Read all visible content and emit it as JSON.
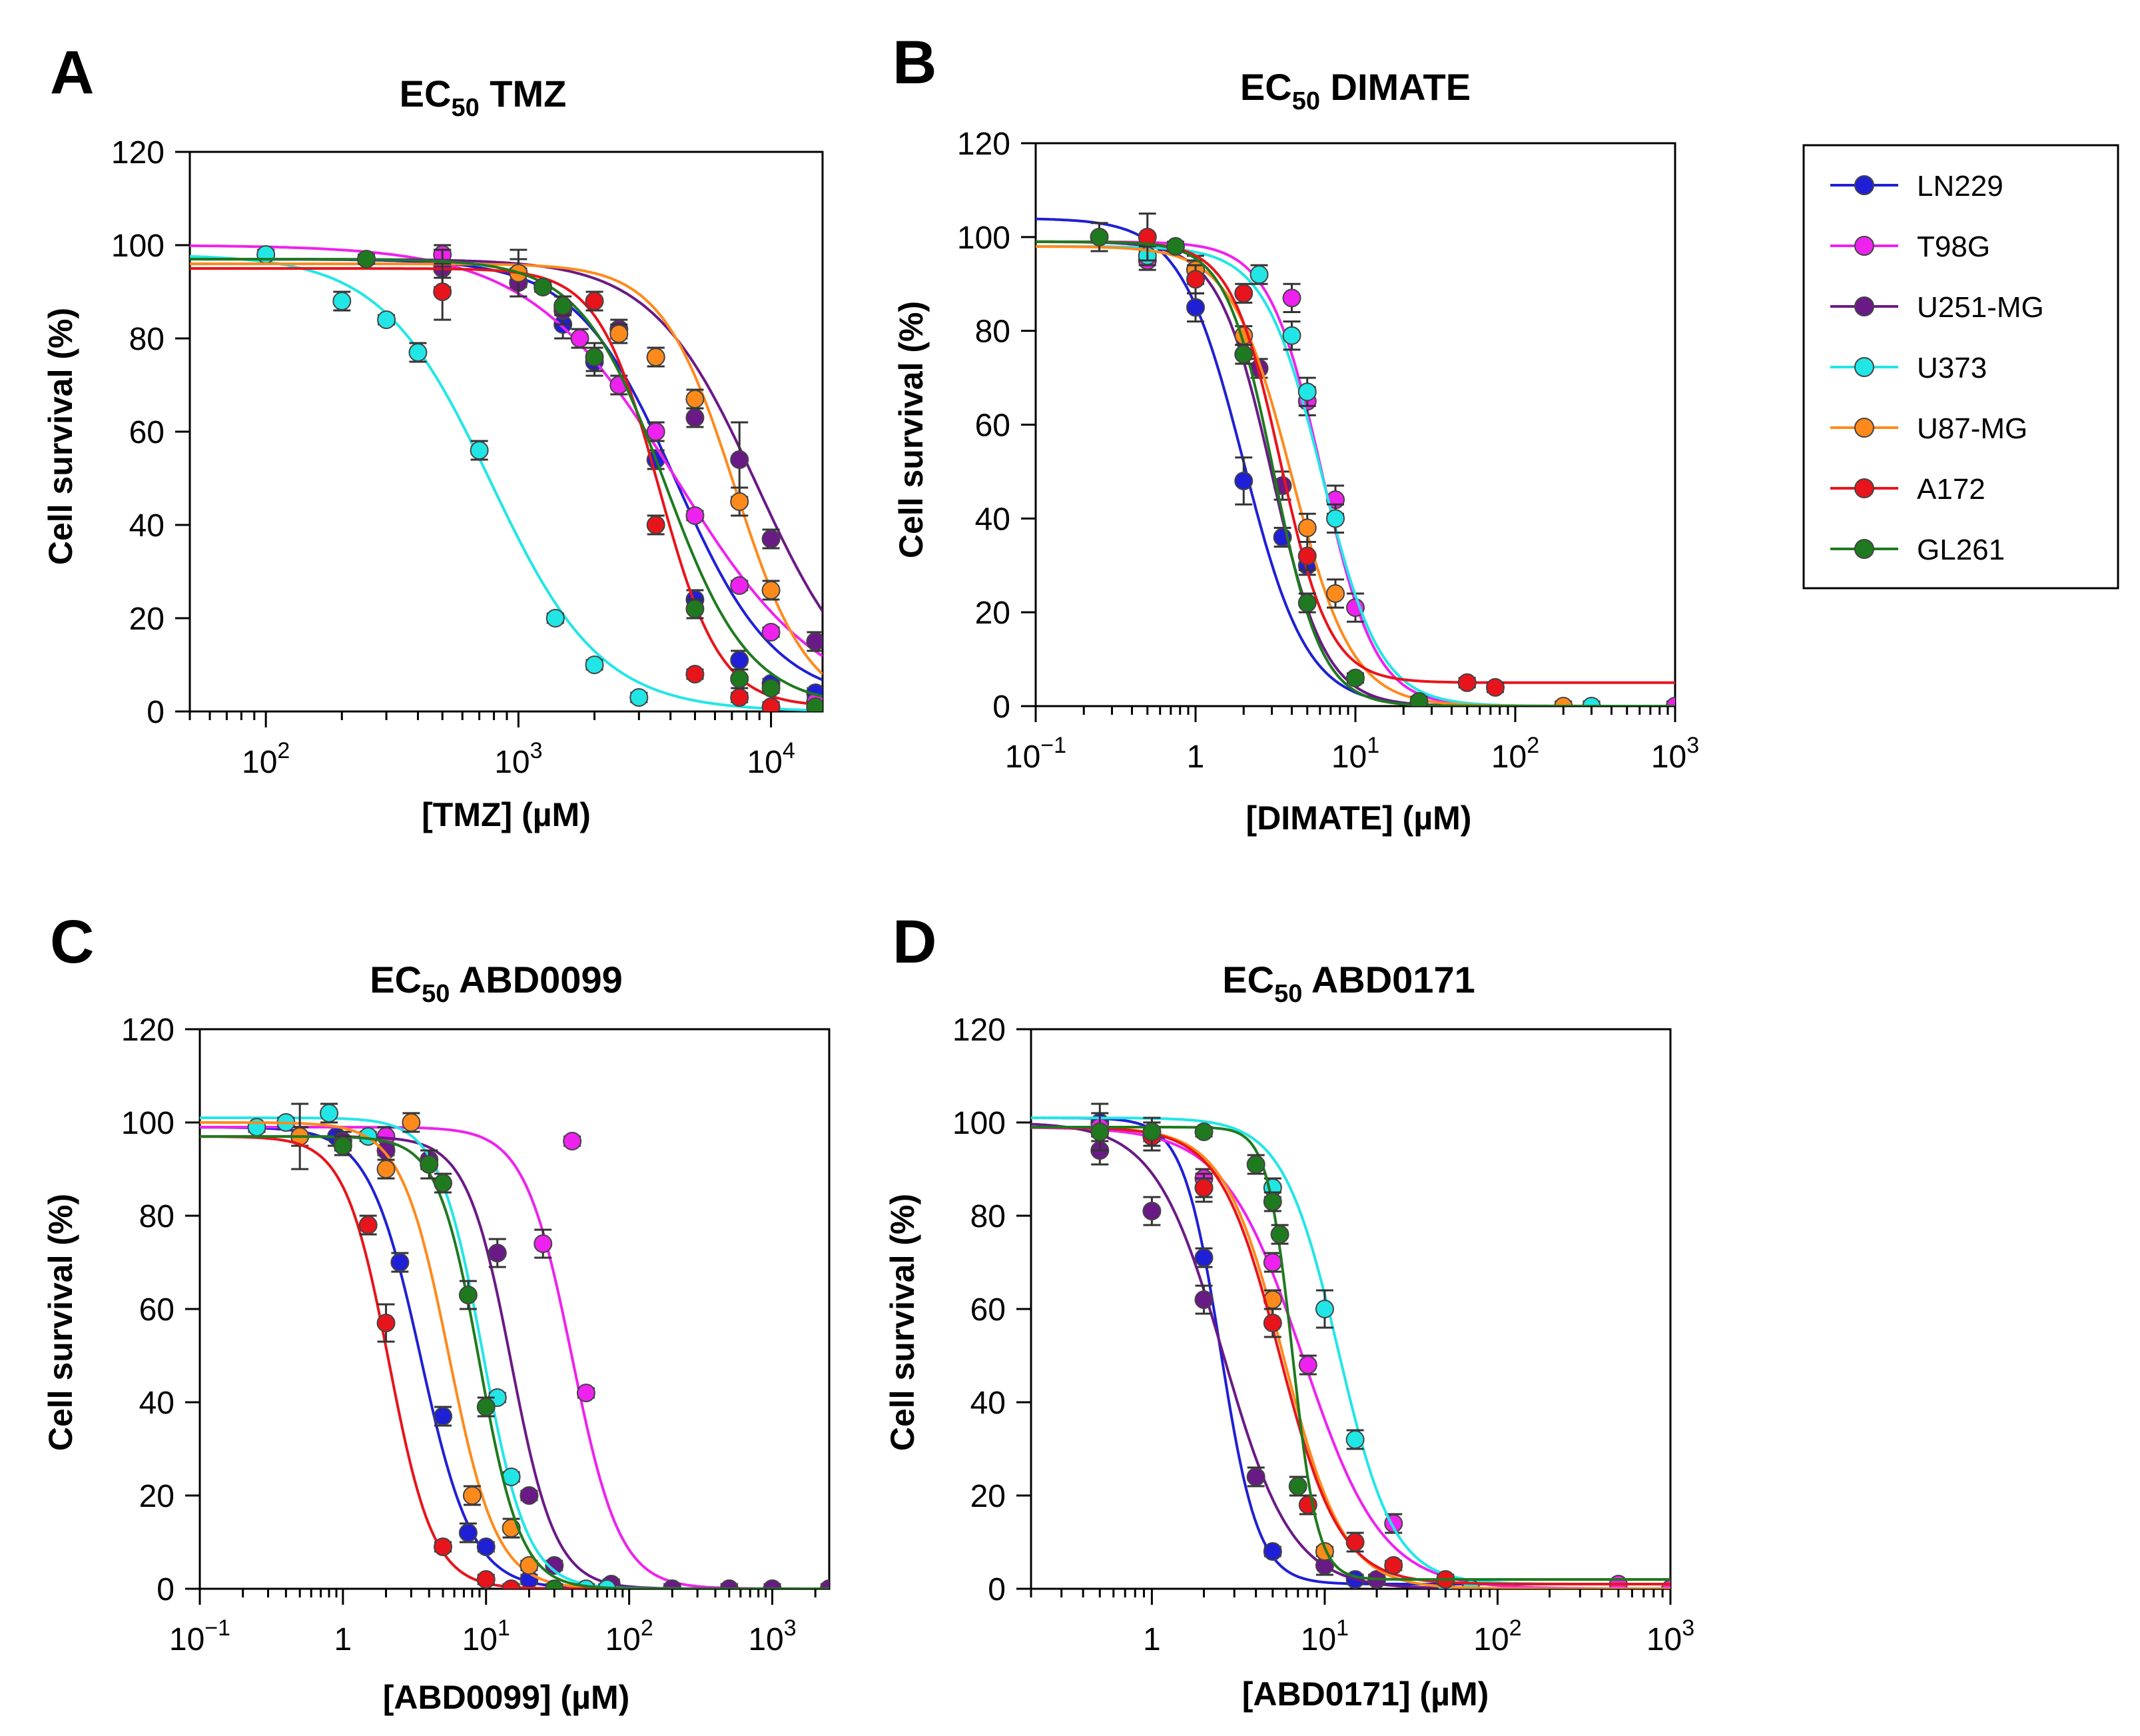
{
  "colors": {
    "LN229": "#1f1fd6",
    "T98G": "#ee22ee",
    "U251-MG": "#6a1a86",
    "U373": "#22e6e6",
    "U87-MG": "#ff8a1c",
    "A172": "#e8141c",
    "GL261": "#1f7a1f"
  },
  "legend": {
    "items": [
      "LN229",
      "T98G",
      "U251-MG",
      "U373",
      "U87-MG",
      "A172",
      "GL261"
    ]
  },
  "chart_data": [
    {
      "panel": "A",
      "type": "line",
      "title_prefix": "EC",
      "title_sub": "50",
      "title_suffix": " TMZ",
      "xlabel": "[TMZ] (µM)",
      "ylabel": "Cell survival (%)",
      "xscale": "log",
      "xlim": [
        50,
        16000
      ],
      "ylim": [
        0,
        120
      ],
      "yticks": [
        0,
        20,
        40,
        60,
        80,
        100,
        120
      ],
      "xticks": [
        {
          "value": 100,
          "base": "10",
          "exp": "2"
        },
        {
          "value": 1000,
          "base": "10",
          "exp": "3"
        },
        {
          "value": 10000,
          "base": "10",
          "exp": "4"
        }
      ],
      "series": [
        {
          "name": "LN229",
          "fit": {
            "top": 97,
            "bottom": 2,
            "ec50": 4200,
            "hill": 2.2
          },
          "x": [
            500,
            1000,
            1500,
            2000,
            3500,
            5000,
            7500,
            10000,
            15000
          ],
          "y": [
            96,
            92,
            83,
            75,
            54,
            24,
            11,
            6,
            4
          ],
          "err": [
            3,
            3,
            3,
            3,
            2,
            2,
            2,
            1,
            1
          ]
        },
        {
          "name": "T98G",
          "fit": {
            "top": 100,
            "bottom": 0,
            "ec50": 4200,
            "hill": 1.5
          },
          "x": [
            500,
            1000,
            1750,
            2500,
            3500,
            5000,
            7500,
            10000,
            15000
          ],
          "y": [
            98,
            94,
            80,
            70,
            60,
            42,
            27,
            17,
            2
          ],
          "err": [
            2,
            3,
            2,
            2,
            2,
            1,
            1,
            1,
            1
          ]
        },
        {
          "name": "U251-MG",
          "fit": {
            "top": 97,
            "bottom": 0,
            "ec50": 8800,
            "hill": 2.1
          },
          "x": [
            500,
            1000,
            1500,
            2500,
            3500,
            5000,
            7500,
            10000,
            15000
          ],
          "y": [
            95,
            92,
            86,
            82,
            76,
            63,
            54,
            37,
            15
          ],
          "err": [
            4,
            3,
            3,
            2,
            2,
            2,
            8,
            2,
            2
          ]
        },
        {
          "name": "U373",
          "fit": {
            "top": 98,
            "bottom": 0,
            "ec50": 780,
            "hill": 2.0
          },
          "x": [
            100,
            200,
            300,
            400,
            700,
            1400,
            2000,
            3000
          ],
          "y": [
            98,
            88,
            84,
            77,
            56,
            20,
            10,
            3
          ],
          "err": [
            1,
            2,
            1,
            2,
            2,
            1,
            1,
            1
          ]
        },
        {
          "name": "U87-MG",
          "fit": {
            "top": 96,
            "bottom": 0,
            "ec50": 7200,
            "hill": 3.0
          },
          "x": [
            1000,
            2500,
            3500,
            5000,
            7500,
            10000
          ],
          "y": [
            94,
            81,
            76,
            67,
            45,
            26
          ],
          "err": [
            5,
            2,
            2,
            2,
            3,
            2
          ]
        },
        {
          "name": "A172",
          "fit": {
            "top": 95,
            "bottom": 1,
            "ec50": 3600,
            "hill": 3.6
          },
          "x": [
            500,
            2000,
            3500,
            5000,
            7500,
            10000,
            15000
          ],
          "y": [
            90,
            88,
            40,
            8,
            3,
            1,
            1
          ],
          "err": [
            6,
            2,
            2,
            1,
            1,
            1,
            1
          ]
        },
        {
          "name": "GL261",
          "fit": {
            "top": 97,
            "bottom": 1,
            "ec50": 3800,
            "hill": 2.6
          },
          "x": [
            250,
            1250,
            1500,
            2000,
            5000,
            7500,
            10000,
            15000
          ],
          "y": [
            97,
            91,
            87,
            76,
            22,
            7,
            5,
            1
          ],
          "err": [
            1,
            1,
            2,
            3,
            2,
            2,
            1,
            1
          ]
        }
      ]
    },
    {
      "panel": "B",
      "type": "line",
      "title_prefix": "EC",
      "title_sub": "50",
      "title_suffix": " DIMATE",
      "xlabel": "[DIMATE] (µM)",
      "ylabel": "Cell survival (%)",
      "xscale": "log",
      "xlim": [
        0.1,
        1000
      ],
      "ylim": [
        0,
        120
      ],
      "yticks": [
        0,
        20,
        40,
        60,
        80,
        100,
        120
      ],
      "xticks": [
        {
          "value": 0.1,
          "base": "10",
          "exp": "−1"
        },
        {
          "value": 1,
          "base": "1",
          "exp": ""
        },
        {
          "value": 10,
          "base": "10",
          "exp": "1"
        },
        {
          "value": 100,
          "base": "10",
          "exp": "2"
        },
        {
          "value": 1000,
          "base": "10",
          "exp": "3"
        }
      ],
      "series": [
        {
          "name": "LN229",
          "fit": {
            "top": 104,
            "bottom": 0,
            "ec50": 2.0,
            "hill": 2.2
          },
          "x": [
            1,
            2,
            3.5,
            5
          ],
          "y": [
            85,
            48,
            36,
            30
          ],
          "err": [
            3,
            5,
            2,
            2
          ]
        },
        {
          "name": "T98G",
          "fit": {
            "top": 99,
            "bottom": 0,
            "ec50": 6.2,
            "hill": 2.6
          },
          "x": [
            0.5,
            4,
            5,
            7.5,
            10,
            1000
          ],
          "y": [
            95,
            87,
            65,
            44,
            21,
            0
          ],
          "err": [
            2,
            3,
            3,
            3,
            3,
            1
          ]
        },
        {
          "name": "U251-MG",
          "fit": {
            "top": 99,
            "bottom": 0,
            "ec50": 3.0,
            "hill": 2.6
          },
          "x": [
            2.5,
            3.5
          ],
          "y": [
            72,
            47
          ],
          "err": [
            2,
            3
          ]
        },
        {
          "name": "U373",
          "fit": {
            "top": 98,
            "bottom": 0,
            "ec50": 6.2,
            "hill": 2.4
          },
          "x": [
            0.5,
            1,
            2.5,
            4,
            5,
            7.5,
            300
          ],
          "y": [
            96,
            93,
            92,
            79,
            67,
            40,
            0
          ],
          "err": [
            2,
            3,
            2,
            3,
            3,
            3,
            1
          ]
        },
        {
          "name": "U87-MG",
          "fit": {
            "top": 98,
            "bottom": 0,
            "ec50": 4.0,
            "hill": 2.3
          },
          "x": [
            1,
            2,
            5,
            7.5,
            200
          ],
          "y": [
            93,
            79,
            38,
            24,
            0
          ],
          "err": [
            2,
            2,
            3,
            3,
            1
          ]
        },
        {
          "name": "A172",
          "fit": {
            "top": 99,
            "bottom": 5,
            "ec50": 3.4,
            "hill": 2.8
          },
          "x": [
            0.5,
            1,
            2,
            5,
            50,
            75
          ],
          "y": [
            100,
            91,
            88,
            32,
            5,
            4
          ],
          "err": [
            5,
            3,
            2,
            3,
            1,
            1
          ]
        },
        {
          "name": "GL261",
          "fit": {
            "top": 99,
            "bottom": 0,
            "ec50": 3.1,
            "hill": 2.9
          },
          "x": [
            0.25,
            0.75,
            2,
            5,
            10,
            25
          ],
          "y": [
            100,
            98,
            75,
            22,
            6,
            1
          ],
          "err": [
            3,
            1,
            2,
            2,
            1,
            1
          ]
        }
      ]
    },
    {
      "panel": "C",
      "type": "line",
      "title_prefix": "EC",
      "title_sub": "50",
      "title_suffix": " ABD0099",
      "xlabel": "[ABD0099] (µM)",
      "ylabel": "Cell survival (%)",
      "xscale": "log",
      "xlim": [
        0.1,
        2500
      ],
      "ylim": [
        0,
        120
      ],
      "yticks": [
        0,
        20,
        40,
        60,
        80,
        100,
        120
      ],
      "xticks": [
        {
          "value": 0.1,
          "base": "10",
          "exp": "−1"
        },
        {
          "value": 1,
          "base": "1",
          "exp": ""
        },
        {
          "value": 10,
          "base": "10",
          "exp": "1"
        },
        {
          "value": 100,
          "base": "10",
          "exp": "2"
        },
        {
          "value": 1000,
          "base": "10",
          "exp": "3"
        }
      ],
      "series": [
        {
          "name": "LN229",
          "fit": {
            "top": 99,
            "bottom": 0,
            "ec50": 3.5,
            "hill": 2.4
          },
          "x": [
            0.9,
            2.5,
            5,
            7.5,
            10,
            20
          ],
          "y": [
            97,
            70,
            37,
            12,
            9,
            2
          ],
          "err": [
            2,
            2,
            2,
            2,
            1,
            1
          ]
        },
        {
          "name": "T98G",
          "fit": {
            "top": 99,
            "bottom": 0,
            "ec50": 40,
            "hill": 2.6
          },
          "x": [
            0.5,
            2,
            25,
            40,
            50,
            200,
            500,
            1000,
            2500
          ],
          "y": [
            97,
            97,
            74,
            96,
            42,
            0,
            0,
            0,
            0
          ],
          "err": [
            2,
            2,
            3,
            1,
            1,
            1,
            1,
            1,
            1
          ]
        },
        {
          "name": "U251-MG",
          "fit": {
            "top": 97,
            "bottom": 0,
            "ec50": 15,
            "hill": 2.8
          },
          "x": [
            1,
            2,
            4,
            12,
            20,
            30,
            75,
            200,
            500,
            1000,
            2500
          ],
          "y": [
            96,
            94,
            92,
            72,
            20,
            5,
            1,
            0,
            0,
            0,
            0
          ],
          "err": [
            2,
            1,
            2,
            3,
            1,
            1,
            1,
            1,
            1,
            1,
            1
          ]
        },
        {
          "name": "U373",
          "fit": {
            "top": 101,
            "bottom": 0,
            "ec50": 9.5,
            "hill": 2.8
          },
          "x": [
            0.25,
            0.4,
            0.8,
            1.5,
            12,
            15,
            50,
            70
          ],
          "y": [
            99,
            100,
            102,
            97,
            41,
            24,
            0,
            0
          ],
          "err": [
            1,
            1,
            2,
            1,
            1,
            1,
            1,
            1
          ]
        },
        {
          "name": "U87-MG",
          "fit": {
            "top": 100,
            "bottom": 0,
            "ec50": 5.5,
            "hill": 2.6
          },
          "x": [
            0.5,
            2,
            3,
            8,
            15,
            20
          ],
          "y": [
            97,
            90,
            100,
            20,
            13,
            5
          ],
          "err": [
            7,
            2,
            2,
            2,
            2,
            1
          ]
        },
        {
          "name": "A172",
          "fit": {
            "top": 97,
            "bottom": 0,
            "ec50": 2.1,
            "hill": 2.8
          },
          "x": [
            1.5,
            2,
            5,
            10,
            15
          ],
          "y": [
            78,
            57,
            9,
            2,
            0
          ],
          "err": [
            2,
            4,
            1,
            1,
            1
          ]
        },
        {
          "name": "GL261",
          "fit": {
            "top": 97,
            "bottom": 0,
            "ec50": 9.0,
            "hill": 3.0
          },
          "x": [
            1,
            4,
            5,
            7.5,
            10,
            30
          ],
          "y": [
            95,
            91,
            87,
            63,
            39,
            0
          ],
          "err": [
            2,
            3,
            2,
            3,
            2,
            1
          ]
        }
      ]
    },
    {
      "panel": "D",
      "type": "line",
      "title_prefix": "EC",
      "title_sub": "50",
      "title_suffix": " ABD0171",
      "xlabel": "[ABD0171] (µM)",
      "ylabel": "Cell survival (%)",
      "xscale": "log",
      "xlim": [
        0.2,
        1000
      ],
      "ylim": [
        0,
        120
      ],
      "yticks": [
        0,
        20,
        40,
        60,
        80,
        100,
        120
      ],
      "xticks": [
        {
          "value": 1,
          "base": "1",
          "exp": ""
        },
        {
          "value": 10,
          "base": "10",
          "exp": "1"
        },
        {
          "value": 100,
          "base": "10",
          "exp": "2"
        },
        {
          "value": 1000,
          "base": "10",
          "exp": "3"
        }
      ],
      "series": [
        {
          "name": "LN229",
          "fit": {
            "top": 101,
            "bottom": 1,
            "ec50": 2.5,
            "hill": 4.0
          },
          "x": [
            0.5,
            1,
            2,
            5,
            15
          ],
          "y": [
            100,
            98,
            71,
            8,
            2
          ],
          "err": [
            4,
            2,
            2,
            1,
            1
          ]
        },
        {
          "name": "T98G",
          "fit": {
            "top": 99,
            "bottom": 0,
            "ec50": 7.5,
            "hill": 1.9
          },
          "x": [
            0.5,
            2,
            5,
            8,
            25,
            500,
            1000
          ],
          "y": [
            99,
            88,
            70,
            48,
            14,
            1,
            0
          ],
          "err": [
            2,
            2,
            2,
            2,
            2,
            1,
            1
          ]
        },
        {
          "name": "U251-MG",
          "fit": {
            "top": 100,
            "bottom": 0,
            "ec50": 2.6,
            "hill": 2.2
          },
          "x": [
            0.5,
            1,
            2,
            4,
            10,
            20
          ],
          "y": [
            94,
            81,
            62,
            24,
            5,
            2
          ],
          "err": [
            3,
            3,
            3,
            2,
            2,
            1
          ]
        },
        {
          "name": "U373",
          "fit": {
            "top": 101,
            "bottom": 1,
            "ec50": 12,
            "hill": 2.7
          },
          "x": [
            5,
            10,
            15,
            50,
            70
          ],
          "y": [
            86,
            60,
            32,
            1,
            0
          ],
          "err": [
            2,
            4,
            2,
            1,
            1
          ]
        },
        {
          "name": "U87-MG",
          "fit": {
            "top": 99,
            "bottom": 0,
            "ec50": 5.8,
            "hill": 2.5
          },
          "x": [
            2,
            5,
            10
          ],
          "y": [
            86,
            62,
            8
          ],
          "err": [
            2,
            2,
            1
          ]
        },
        {
          "name": "A172",
          "fit": {
            "top": 99,
            "bottom": 1,
            "ec50": 5.5,
            "hill": 2.5
          },
          "x": [
            1,
            2,
            5,
            8,
            15,
            25,
            50
          ],
          "y": [
            97,
            86,
            57,
            18,
            10,
            5,
            2
          ],
          "err": [
            3,
            3,
            3,
            2,
            2,
            1,
            1
          ]
        },
        {
          "name": "GL261",
          "fit": {
            "top": 99,
            "bottom": 2,
            "ec50": 6.5,
            "hill": 6.0
          },
          "x": [
            0.5,
            1,
            2,
            4,
            5,
            5.5,
            7
          ],
          "y": [
            98,
            98,
            98,
            91,
            83,
            76,
            22
          ],
          "err": [
            4,
            3,
            1,
            2,
            2,
            2,
            2
          ]
        }
      ]
    }
  ]
}
